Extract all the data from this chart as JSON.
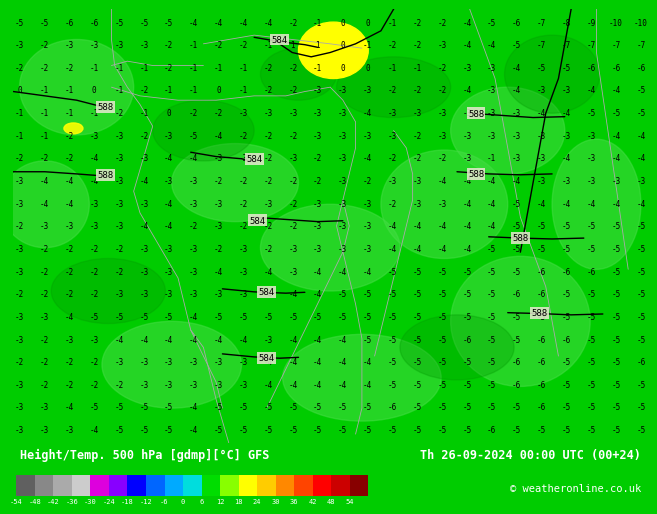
{
  "title_left": "Height/Temp. 500 hPa [gdmp][°C] GFS",
  "title_right": "Th 26-09-2024 00:00 UTC (00+24)",
  "credit": "© weatheronline.co.uk",
  "colorbar_values": [
    -54,
    -48,
    -42,
    -36,
    -30,
    -24,
    -18,
    -12,
    -6,
    0,
    6,
    12,
    18,
    24,
    30,
    36,
    42,
    48,
    54
  ],
  "colorbar_colors": [
    "#606060",
    "#888888",
    "#aaaaaa",
    "#cccccc",
    "#dd00dd",
    "#8800ff",
    "#0000ff",
    "#0066ff",
    "#00aaff",
    "#00dddd",
    "#00dd00",
    "#88ff00",
    "#ffff00",
    "#ffcc00",
    "#ff8800",
    "#ff4400",
    "#ff0000",
    "#cc0000",
    "#880000"
  ],
  "bg_green": "#00cc00",
  "map_green_base": "#00cc00",
  "map_green_light": "#44dd44",
  "map_green_dark": "#009900",
  "map_yellow": "#ffff00",
  "map_lightyellow": "#ffff66",
  "bottom_bg": "#000000",
  "label_bg": "#e8e8d0",
  "num_rows": 19,
  "num_cols": 26,
  "temperature_grid": [
    [
      -5,
      -5,
      -6,
      -6,
      -5,
      -5,
      -5,
      -4,
      -4,
      -4,
      -4,
      -2,
      -1,
      0,
      0,
      -1,
      -2,
      -2,
      -4,
      -5,
      -6,
      -7,
      -8,
      -9,
      -10,
      -10
    ],
    [
      -3,
      -2,
      -3,
      -3,
      -3,
      -3,
      -2,
      -1,
      -2,
      -2,
      -1,
      1,
      1,
      0,
      -1,
      -2,
      -2,
      -3,
      -4,
      -4,
      -5,
      -7,
      -7,
      -7,
      -7,
      -7
    ],
    [
      -2,
      -2,
      -2,
      -1,
      -1,
      -1,
      -2,
      -1,
      -1,
      -1,
      -2,
      -2,
      -1,
      0,
      0,
      -1,
      -1,
      -2,
      -3,
      -3,
      -4,
      -5,
      -5,
      -6,
      -6,
      -6
    ],
    [
      0,
      -1,
      -1,
      0,
      -1,
      -2,
      -1,
      -1,
      0,
      -1,
      -2,
      -2,
      -3,
      -3,
      -3,
      -2,
      -2,
      -2,
      -4,
      -3,
      -4,
      -3,
      -3,
      -4,
      -4,
      -5
    ],
    [
      -1,
      -1,
      -1,
      -1,
      -2,
      -1,
      0,
      -2,
      -2,
      -3,
      -3,
      -3,
      -3,
      -3,
      -4,
      -3,
      -3,
      -3,
      -3,
      -3,
      -3,
      -4,
      -4,
      -5,
      -5,
      -5
    ],
    [
      -1,
      -1,
      -2,
      -3,
      -3,
      -2,
      -3,
      -5,
      -4,
      -2,
      -2,
      -2,
      -3,
      -3,
      -3,
      -3,
      -2,
      -3,
      -3,
      -3,
      -3,
      -3,
      -3,
      -3,
      -4,
      -4
    ],
    [
      -2,
      -2,
      -2,
      -4,
      -3,
      -3,
      -4,
      -4,
      -3,
      -3,
      -2,
      -3,
      -2,
      -3,
      -4,
      -2,
      -2,
      -2,
      -3,
      -1,
      -3,
      -3,
      -4,
      -3,
      -4,
      -4
    ],
    [
      -3,
      -4,
      -4,
      -4,
      -3,
      -4,
      -3,
      -3,
      -2,
      -2,
      -2,
      -2,
      -2,
      -3,
      -2,
      -3,
      -3,
      -4,
      -4,
      -4,
      -4,
      -3,
      -3,
      -3,
      -3,
      -3
    ],
    [
      -3,
      -4,
      -4,
      -3,
      -3,
      -3,
      -4,
      -3,
      -3,
      -2,
      -3,
      -2,
      -3,
      -3,
      -3,
      -2,
      -3,
      -3,
      -4,
      -4,
      -5,
      -4,
      -4,
      -4,
      -4,
      -4
    ],
    [
      -2,
      -3,
      -3,
      -3,
      -3,
      -4,
      -4,
      -2,
      -3,
      -2,
      -2,
      -2,
      -3,
      -3,
      -3,
      -4,
      -4,
      -4,
      -4,
      -4,
      -5,
      -5,
      -5,
      -5,
      -5,
      -5
    ],
    [
      -3,
      -2,
      -2,
      -2,
      -2,
      -3,
      -3,
      -3,
      -2,
      -3,
      -2,
      -3,
      -3,
      -3,
      -3,
      -4,
      -4,
      -4,
      -4,
      -5,
      -5,
      -5,
      -5,
      -5,
      -5,
      -5
    ],
    [
      -3,
      -2,
      -2,
      -2,
      -2,
      -3,
      -3,
      -3,
      -4,
      -3,
      -4,
      -3,
      -4,
      -4,
      -4,
      -5,
      -5,
      -5,
      -5,
      -5,
      -5,
      -6,
      -6,
      -6,
      -5,
      -5
    ],
    [
      -2,
      -2,
      -2,
      -2,
      -3,
      -3,
      -3,
      -3,
      -3,
      -3,
      -4,
      -4,
      -4,
      -5,
      -5,
      -5,
      -5,
      -5,
      -5,
      -5,
      -6,
      -6,
      -5,
      -5,
      -5,
      -5
    ],
    [
      -3,
      -3,
      -4,
      -5,
      -5,
      -5,
      -5,
      -4,
      -5,
      -5,
      -5,
      -5,
      -5,
      -5,
      -5,
      -5,
      -5,
      -5,
      -5,
      -5,
      -5,
      -5,
      -5,
      -5,
      -5,
      -5
    ],
    [
      -3,
      -2,
      -3,
      -3,
      -4,
      -4,
      -4,
      -4,
      -4,
      -4,
      -3,
      -4,
      -4,
      -4,
      -5,
      -5,
      -5,
      -5,
      -6,
      -5,
      -5,
      -6,
      -6,
      -5,
      -5,
      -5
    ],
    [
      -2,
      -2,
      -2,
      -2,
      -3,
      -3,
      -3,
      -3,
      -3,
      -3,
      -4,
      -4,
      -4,
      -4,
      -4,
      -5,
      -5,
      -5,
      -5,
      -5,
      -6,
      -6,
      -5,
      -5,
      -5,
      -6
    ],
    [
      -3,
      -2,
      -2,
      -2,
      -2,
      -3,
      -3,
      -3,
      -3,
      -3,
      -4,
      -4,
      -4,
      -4,
      -4,
      -5,
      -5,
      -5,
      -5,
      -5,
      -6,
      -6,
      -5,
      -5,
      -5,
      -5
    ],
    [
      -3,
      -3,
      -4,
      -5,
      -5,
      -5,
      -5,
      -4,
      -5,
      -5,
      -5,
      -5,
      -5,
      -5,
      -5,
      -6,
      -5,
      -5,
      -5,
      -5,
      -5,
      -6,
      -5,
      -5,
      -5,
      -5
    ],
    [
      -3,
      -3,
      -3,
      -4,
      -5,
      -5,
      -5,
      -4,
      -5,
      -5,
      -5,
      -5,
      -5,
      -5,
      -5,
      -5,
      -5,
      -5,
      -5,
      -6,
      -5,
      -5,
      -5,
      -5,
      -5,
      -5
    ]
  ]
}
